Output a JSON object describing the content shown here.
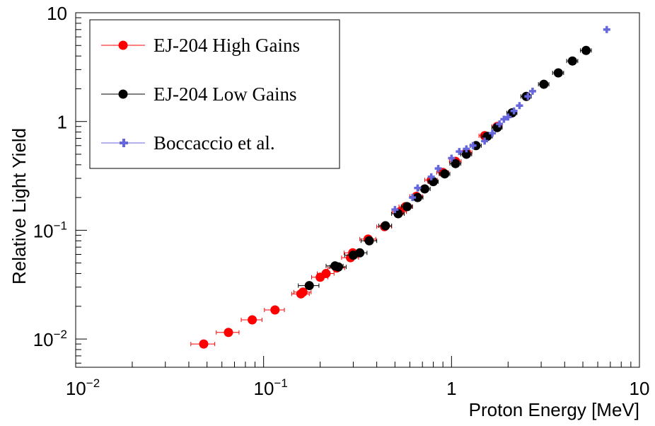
{
  "chart_data": {
    "type": "scatter",
    "title": "",
    "xlabel": "Proton Energy [MeV]",
    "ylabel": "Relative Light Yield",
    "xscale": "log",
    "yscale": "log",
    "xlim": [
      0.01,
      10
    ],
    "ylim": [
      0.0055,
      10
    ],
    "x_ticks": [
      {
        "value": 0.01,
        "base": "10",
        "exp": "−2"
      },
      {
        "value": 0.1,
        "base": "10",
        "exp": "−1"
      },
      {
        "value": 1,
        "base": "1",
        "exp": ""
      },
      {
        "value": 10,
        "base": "10",
        "exp": ""
      }
    ],
    "y_ticks": [
      {
        "value": 0.01,
        "base": "10",
        "exp": "−2"
      },
      {
        "value": 0.1,
        "base": "10",
        "exp": "−1"
      },
      {
        "value": 1,
        "base": "1",
        "exp": ""
      },
      {
        "value": 10,
        "base": "10",
        "exp": ""
      }
    ],
    "grid": false,
    "legend_position": "top-left",
    "series": [
      {
        "name": "EJ-204 High Gains",
        "color": "#ff0000",
        "marker": "circle",
        "x": [
          0.048,
          0.065,
          0.087,
          0.115,
          0.158,
          0.162,
          0.2,
          0.215,
          0.245,
          0.29,
          0.298,
          0.36,
          0.44,
          0.53,
          0.57,
          0.65,
          0.78,
          0.9,
          1.05,
          1.2,
          1.5,
          1.75
        ],
        "y": [
          0.009,
          0.0115,
          0.015,
          0.0185,
          0.026,
          0.027,
          0.037,
          0.04,
          0.045,
          0.056,
          0.062,
          0.083,
          0.108,
          0.148,
          0.165,
          0.205,
          0.29,
          0.34,
          0.43,
          0.52,
          0.74,
          0.9
        ],
        "xerr": [
          0.007,
          0.009,
          0.011,
          0.014,
          0.017,
          0.017,
          0.02,
          0.022,
          0.025,
          0.03,
          0.03,
          0.035,
          0.04,
          0.045,
          0.045,
          0.05,
          0.06,
          0.065,
          0.075,
          0.085,
          0.1,
          0.11
        ]
      },
      {
        "name": "EJ-204 Low Gains",
        "color": "#000000",
        "marker": "circle",
        "x": [
          0.175,
          0.24,
          0.25,
          0.3,
          0.325,
          0.365,
          0.445,
          0.52,
          0.58,
          0.66,
          0.72,
          0.8,
          0.92,
          1.05,
          1.2,
          1.35,
          1.55,
          1.75,
          2.1,
          2.5,
          3.1,
          3.7,
          4.4,
          5.2
        ],
        "y": [
          0.031,
          0.047,
          0.046,
          0.059,
          0.062,
          0.08,
          0.11,
          0.142,
          0.165,
          0.2,
          0.24,
          0.28,
          0.33,
          0.41,
          0.5,
          0.6,
          0.73,
          0.88,
          1.2,
          1.7,
          2.2,
          2.8,
          3.6,
          4.5
        ],
        "xerr": [
          0.022,
          0.025,
          0.025,
          0.03,
          0.03,
          0.035,
          0.035,
          0.04,
          0.04,
          0.045,
          0.05,
          0.05,
          0.06,
          0.07,
          0.08,
          0.09,
          0.1,
          0.11,
          0.13,
          0.16,
          0.2,
          0.25,
          0.3,
          0.35
        ]
      },
      {
        "name": "Boccaccio et al.",
        "color": "#6666dd",
        "marker": "plus",
        "x": [
          0.5,
          0.62,
          0.66,
          0.78,
          0.85,
          1.0,
          1.1,
          1.2,
          1.3,
          1.5,
          1.65,
          1.8,
          1.9,
          2.0,
          2.15,
          2.3,
          2.55,
          2.7,
          6.7
        ],
        "y": [
          0.155,
          0.2,
          0.245,
          0.31,
          0.37,
          0.46,
          0.53,
          0.56,
          0.6,
          0.66,
          0.78,
          0.95,
          1.05,
          1.1,
          1.25,
          1.4,
          1.7,
          1.9,
          7.0
        ]
      }
    ]
  }
}
